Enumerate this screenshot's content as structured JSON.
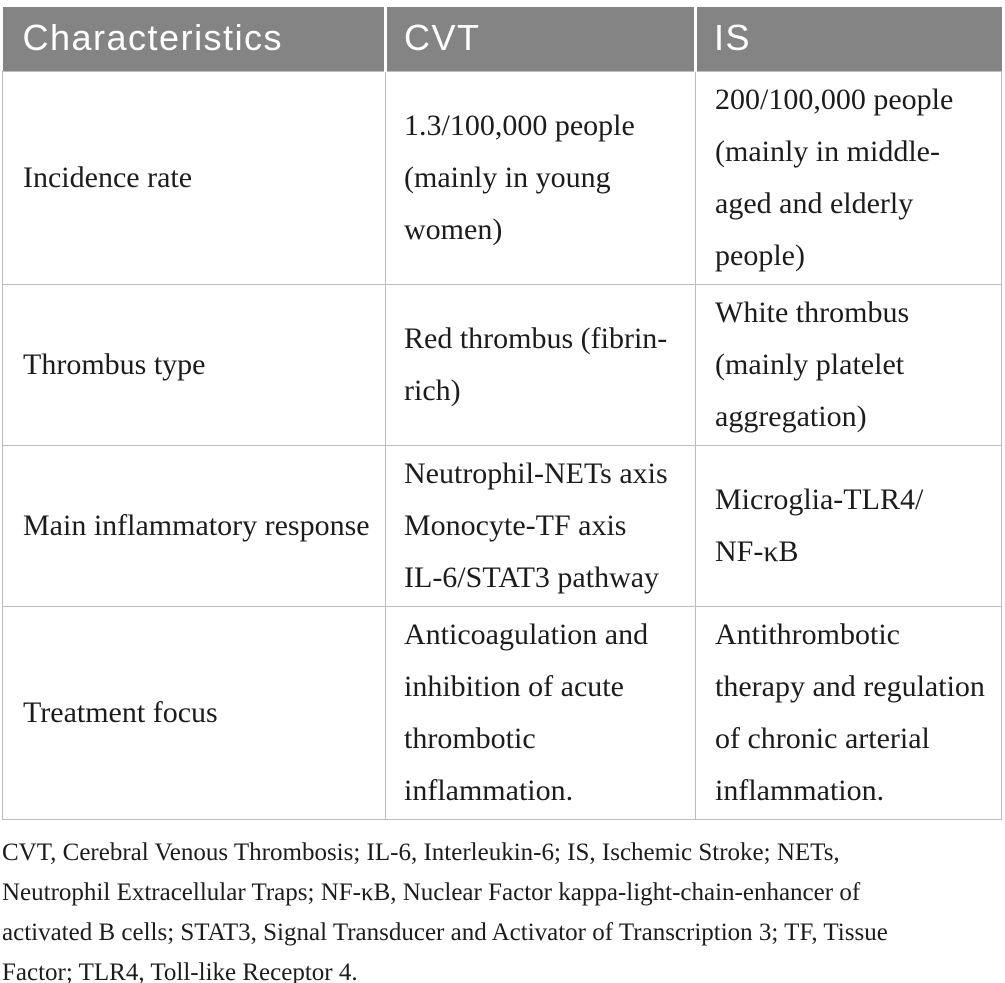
{
  "table": {
    "headers": [
      "Characteristics",
      "CVT",
      "IS"
    ],
    "rows": [
      {
        "characteristic": "Incidence rate",
        "cvt": [
          "1.3/100,000 people",
          "(mainly in young",
          "women)"
        ],
        "is": [
          "200/100,000 people",
          "(mainly in middle-",
          "aged and elderly",
          "people)"
        ]
      },
      {
        "characteristic": "Thrombus type",
        "cvt": [
          "Red thrombus (fibrin-",
          "rich)"
        ],
        "is": [
          "White thrombus",
          "(mainly platelet",
          "aggregation)"
        ]
      },
      {
        "characteristic": "Main inflammatory response",
        "cvt": [
          "Neutrophil-NETs axis",
          "Monocyte-TF axis",
          "IL-6/STAT3 pathway"
        ],
        "is": [
          "Microglia-TLR4/",
          "NF-κB"
        ]
      },
      {
        "characteristic": "Treatment focus",
        "cvt": [
          "Anticoagulation and",
          "inhibition of acute",
          "thrombotic",
          "inflammation."
        ],
        "is": [
          "Antithrombotic",
          "therapy and regulation",
          "of chronic arterial",
          "inflammation."
        ]
      }
    ]
  },
  "footnote_lines": [
    "CVT, Cerebral Venous Thrombosis; IL-6, Interleukin-6; IS, Ischemic Stroke; NETs,",
    "Neutrophil Extracellular Traps; NF-κB, Nuclear Factor kappa-light-chain-enhancer of",
    "activated B cells; STAT3, Signal Transducer and Activator of Transcription 3; TF, Tissue",
    "Factor; TLR4, Toll-like Receptor 4."
  ],
  "colors": {
    "header_bg": "#848484",
    "header_text": "#ffffff",
    "border": "#bcbcbc",
    "body_text": "#1c1c1c"
  }
}
